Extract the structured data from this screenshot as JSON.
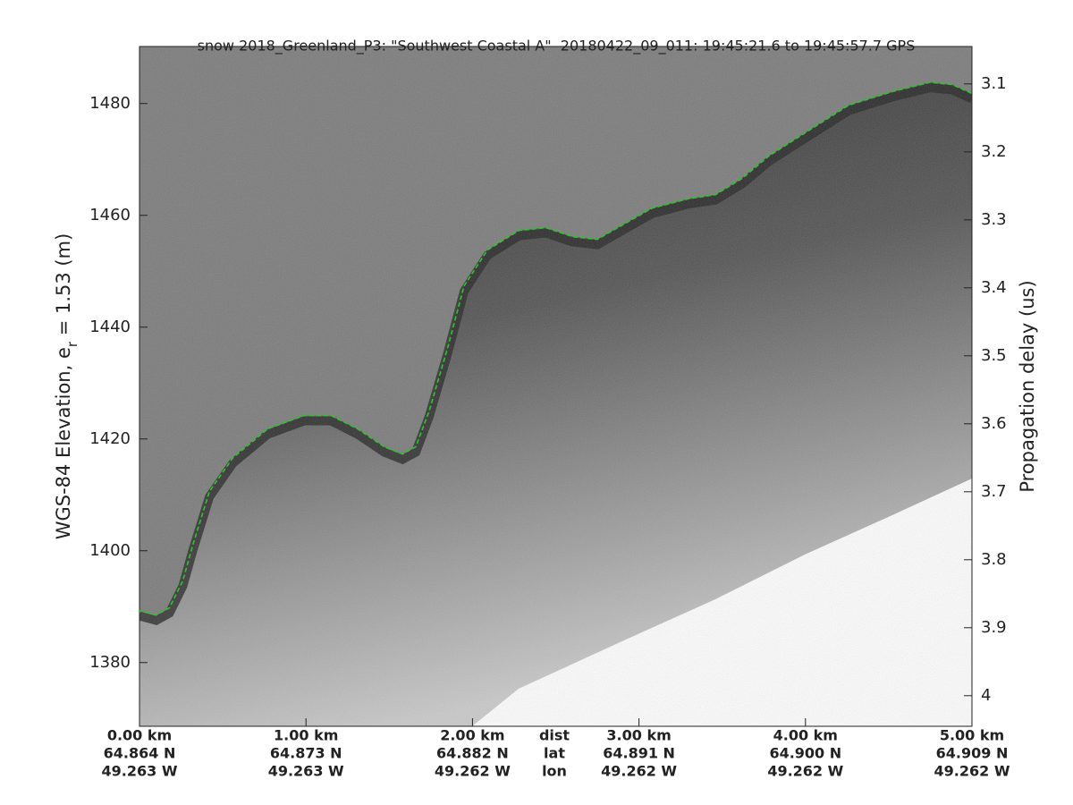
{
  "chart_data": {
    "type": "line",
    "title": "snow 2018_Greenland_P3: \"Southwest Coastal A\"  20180422_09_011: 19:45:21.6 to 19:45:57.7 GPS",
    "ylabel": {
      "text": "WGS-84 Elevation, e",
      "subscript": "r",
      "suffix": " = 1.53 (m)"
    },
    "y2label": "Propagation delay (us)",
    "x": [
      0,
      0.1,
      0.18,
      0.26,
      0.32,
      0.42,
      0.56,
      0.77,
      0.99,
      1.15,
      1.31,
      1.47,
      1.58,
      1.66,
      1.74,
      1.85,
      1.95,
      2.09,
      2.28,
      2.44,
      2.6,
      2.75,
      2.92,
      3.08,
      3.3,
      3.46,
      3.62,
      3.78,
      3.99,
      4.26,
      4.53,
      4.75,
      4.88,
      5.0
    ],
    "values": [
      1389.3,
      1388.5,
      1389.8,
      1394.6,
      1401,
      1410.6,
      1416.6,
      1421.8,
      1424.2,
      1424.2,
      1421.8,
      1418.6,
      1417.3,
      1418.6,
      1425,
      1436.2,
      1447.4,
      1453.8,
      1457.3,
      1457.8,
      1456.2,
      1455.7,
      1458.6,
      1461.3,
      1463,
      1463.7,
      1466.6,
      1470.6,
      1474.6,
      1479.7,
      1482.2,
      1483.8,
      1483.4,
      1481.8
    ],
    "color": "#22cc22",
    "xlim": [
      0,
      5
    ],
    "xticks": [
      {
        "value": 0,
        "label": "0.00 km"
      },
      {
        "value": 1,
        "label": "1.00 km"
      },
      {
        "value": 2,
        "label": "2.00 km"
      },
      {
        "value": 3,
        "label": "3.00 km"
      },
      {
        "value": 4,
        "label": "4.00 km"
      },
      {
        "value": 5,
        "label": "5.00 km"
      }
    ],
    "lat_labels": [
      "64.864 N",
      "64.873 N",
      "64.882 N",
      "64.891 N",
      "64.900 N",
      "64.909 N"
    ],
    "lon_labels": [
      "49.263 W",
      "49.263 W",
      "49.262 W",
      "49.262 W",
      "49.262 W",
      "49.262 W"
    ],
    "x_row_labels": [
      "dist",
      "lat",
      "lon"
    ],
    "ylim": [
      1368.6,
      1490.2
    ],
    "yticks": [
      1380,
      1400,
      1420,
      1440,
      1460,
      1480
    ],
    "y2lim": [
      4.045,
      3.045
    ],
    "y2ticks": [
      3.1,
      3.2,
      3.3,
      3.4,
      3.5,
      3.6,
      3.7,
      3.8,
      3.9,
      4
    ]
  }
}
